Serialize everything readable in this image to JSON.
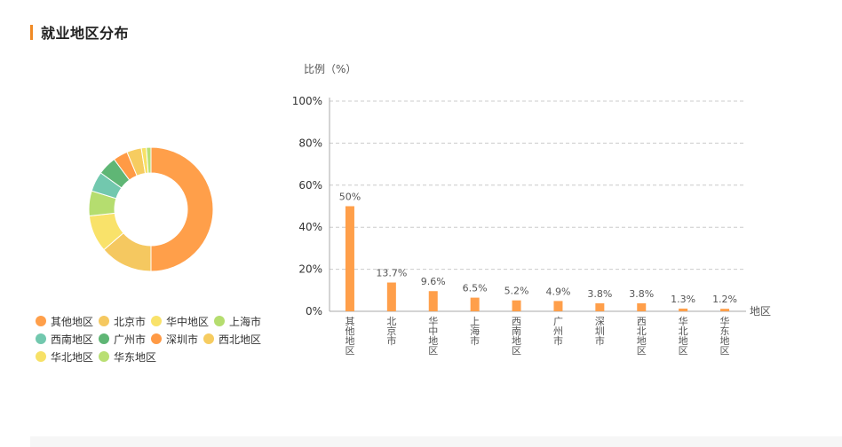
{
  "header": {
    "title": "就业地区分布"
  },
  "chart_data": [
    {
      "type": "pie",
      "categories": [
        "其他地区",
        "北京市",
        "华中地区",
        "上海市",
        "西南地区",
        "广州市",
        "深圳市",
        "西北地区",
        "华北地区",
        "华东地区"
      ],
      "values": [
        50,
        13.7,
        9.6,
        6.5,
        5.2,
        4.9,
        3.8,
        3.8,
        1.3,
        1.2
      ],
      "colors": [
        "#ff9f4a",
        "#f5c860",
        "#f9e26a",
        "#b5dd6f",
        "#72c8ae",
        "#5fb675",
        "#ff9a45",
        "#f6cc60",
        "#f7e167",
        "#b9df73"
      ],
      "legend_position": "bottom"
    },
    {
      "type": "bar",
      "categories": [
        "其他地区",
        "北京市",
        "华中地区",
        "上海市",
        "西南地区",
        "广州市",
        "深圳市",
        "西北地区",
        "华北地区",
        "华东地区"
      ],
      "values": [
        50,
        13.7,
        9.6,
        6.5,
        5.2,
        4.9,
        3.8,
        3.8,
        1.3,
        1.2
      ],
      "value_labels": [
        "50%",
        "13.7%",
        "9.6%",
        "6.5%",
        "5.2%",
        "4.9%",
        "3.8%",
        "3.8%",
        "1.3%",
        "1.2%"
      ],
      "ylabel": "比例（%）",
      "xlabel": "地区",
      "ylim": [
        0,
        100
      ],
      "yticks": [
        "0%",
        "20%",
        "40%",
        "60%",
        "80%",
        "100%"
      ],
      "ytick_values": [
        0,
        20,
        40,
        60,
        80,
        100
      ],
      "grid": true,
      "bar_color": "#ff9f4a"
    }
  ]
}
